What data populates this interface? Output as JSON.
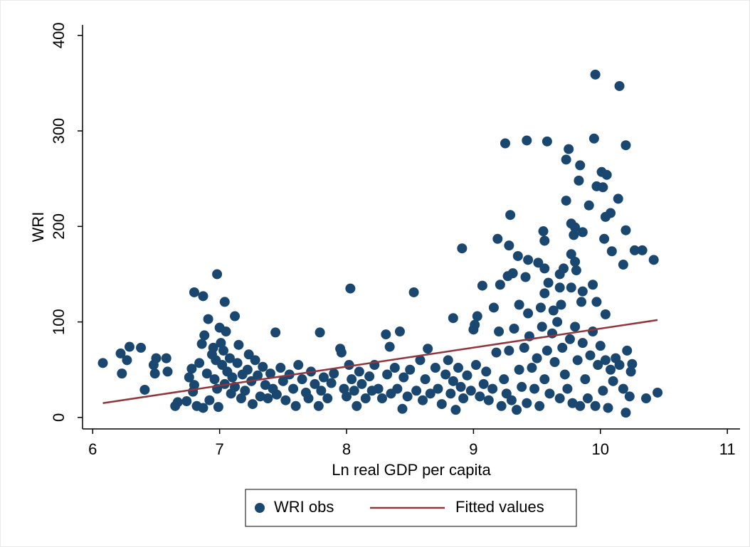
{
  "chart_data": {
    "type": "scatter",
    "xlabel": "Ln real GDP per capita",
    "ylabel": "WRI",
    "xlim": [
      5.92,
      11.1
    ],
    "ylim": [
      -12,
      411
    ],
    "xticks": [
      6,
      7,
      8,
      9,
      10,
      11
    ],
    "yticks": [
      0,
      100,
      200,
      300,
      400
    ],
    "grid": false,
    "legend": "bottom",
    "series": [
      {
        "name": "WRI obs",
        "type": "scatter",
        "color": "#1a476f",
        "x": [
          6.08,
          6.22,
          6.23,
          6.29,
          6.27,
          6.38,
          6.41,
          6.49,
          6.5,
          6.48,
          6.58,
          6.59,
          6.8,
          6.87,
          6.98,
          7.04,
          7.12,
          6.91,
          7.44,
          7.79,
          8.03,
          8.53,
          8.31,
          8.42,
          8.34,
          8.91,
          8.84,
          9.07,
          9.03,
          9.25,
          9.42,
          9.58,
          9.75,
          9.96,
          10.15,
          9.95,
          10.2,
          9.73,
          9.84,
          10.01,
          10.05,
          9.97,
          10.02,
          9.83,
          9.73,
          10.14,
          9.91,
          9.29,
          10.08,
          10.04,
          9.77,
          9.8,
          9.55,
          10.2,
          9.79,
          9.86,
          9.19,
          9.56,
          10.03,
          9.28,
          9.35,
          10.27,
          10.33,
          10.09,
          9.43,
          10.42,
          10.18,
          9.51,
          9.56,
          9.77,
          9.8,
          9.71,
          9.81,
          9.31,
          9.27,
          9.68,
          9.41,
          9.21,
          9.59,
          9.77,
          9.94,
          9.86,
          9.68,
          9.56,
          9.85,
          9.97,
          9.36,
          9.53,
          9.69,
          10.04,
          9.43,
          9.63,
          9.16,
          6.65,
          6.67,
          6.74,
          6.76,
          6.78,
          6.79,
          6.8,
          6.82,
          6.84,
          6.86,
          6.87,
          6.88,
          6.9,
          6.92,
          6.94,
          6.95,
          6.96,
          6.97,
          6.98,
          6.99,
          7.0,
          7.01,
          7.02,
          7.03,
          7.04,
          7.05,
          7.06,
          7.08,
          7.09,
          7.1,
          7.12,
          7.14,
          7.15,
          7.17,
          7.18,
          7.2,
          7.22,
          7.23,
          7.25,
          7.26,
          7.28,
          7.3,
          7.32,
          7.34,
          7.36,
          7.38,
          7.4,
          7.42,
          7.45,
          7.48,
          7.5,
          7.52,
          7.55,
          7.58,
          7.6,
          7.62,
          7.65,
          7.68,
          7.7,
          7.72,
          7.75,
          7.78,
          7.8,
          7.82,
          7.85,
          7.88,
          7.9,
          7.95,
          7.96,
          7.98,
          8.0,
          8.02,
          8.04,
          8.06,
          8.08,
          8.1,
          8.12,
          8.15,
          8.18,
          8.2,
          8.22,
          8.25,
          8.28,
          8.32,
          8.35,
          8.38,
          8.4,
          8.44,
          8.45,
          8.48,
          8.5,
          8.55,
          8.58,
          8.6,
          8.62,
          8.64,
          8.66,
          8.7,
          8.72,
          8.75,
          8.78,
          8.8,
          8.82,
          8.84,
          8.86,
          8.88,
          8.9,
          8.92,
          8.95,
          8.98,
          9.0,
          9.01,
          9.02,
          9.05,
          9.08,
          9.1,
          9.12,
          9.15,
          9.18,
          9.2,
          9.22,
          9.24,
          9.26,
          9.28,
          9.3,
          9.32,
          9.34,
          9.36,
          9.38,
          9.4,
          9.42,
          9.44,
          9.46,
          9.48,
          9.5,
          9.52,
          9.54,
          9.56,
          9.58,
          9.6,
          9.62,
          9.64,
          9.66,
          9.68,
          9.7,
          9.72,
          9.74,
          9.76,
          9.78,
          9.8,
          9.82,
          9.84,
          9.86,
          9.88,
          9.9,
          9.92,
          9.94,
          9.96,
          9.98,
          10.0,
          10.02,
          10.04,
          10.06,
          10.08,
          10.1,
          10.12,
          10.15,
          10.18,
          10.2,
          10.21,
          10.23,
          10.24,
          10.25,
          10.36,
          10.45
        ],
        "values": [
          57,
          67,
          46,
          74,
          60,
          73,
          29,
          46,
          62,
          55,
          62,
          48,
          131,
          127,
          150,
          121,
          106,
          103,
          89,
          89,
          135,
          131,
          87,
          90,
          74,
          177,
          104,
          138,
          106,
          287,
          290,
          289,
          281,
          359,
          347,
          292,
          285,
          270,
          264,
          257,
          254,
          242,
          241,
          248,
          227,
          229,
          222,
          212,
          214,
          210,
          203,
          199,
          195,
          196,
          191,
          194,
          187,
          185,
          187,
          180,
          169,
          175,
          175,
          174,
          165,
          165,
          160,
          162,
          156,
          171,
          163,
          156,
          154,
          151,
          148,
          150,
          147,
          139,
          141,
          136,
          139,
          132,
          136,
          130,
          121,
          121,
          118,
          115,
          118,
          108,
          109,
          112,
          115,
          12,
          16,
          17,
          42,
          51,
          27,
          34,
          12,
          57,
          77,
          10,
          86,
          46,
          18,
          66,
          73,
          40,
          60,
          30,
          11,
          94,
          78,
          55,
          70,
          35,
          90,
          48,
          62,
          25,
          42,
          32,
          57,
          76,
          20,
          45,
          28,
          50,
          66,
          38,
          14,
          60,
          44,
          22,
          53,
          34,
          20,
          46,
          30,
          24,
          52,
          38,
          18,
          45,
          30,
          12,
          55,
          40,
          26,
          20,
          48,
          35,
          12,
          28,
          42,
          20,
          36,
          46,
          72,
          68,
          30,
          22,
          55,
          40,
          28,
          12,
          48,
          35,
          20,
          43,
          28,
          55,
          30,
          20,
          45,
          25,
          52,
          30,
          9,
          42,
          22,
          50,
          28,
          60,
          18,
          40,
          72,
          25,
          52,
          30,
          14,
          45,
          60,
          25,
          38,
          8,
          52,
          32,
          20,
          44,
          28,
          92,
          97,
          55,
          22,
          35,
          48,
          18,
          30,
          68,
          90,
          12,
          40,
          25,
          70,
          18,
          93,
          8,
          50,
          32,
          73,
          15,
          85,
          52,
          30,
          62,
          12,
          95,
          40,
          70,
          25,
          88,
          58,
          100,
          20,
          73,
          45,
          30,
          82,
          15,
          95,
          60,
          12,
          78,
          40,
          20,
          65,
          90,
          12,
          55,
          75,
          28,
          60,
          10,
          50,
          38,
          62,
          55,
          30,
          5,
          70,
          22,
          48,
          56,
          20,
          26
        ]
      },
      {
        "name": "Fitted values",
        "type": "line",
        "color": "#90353b",
        "x": [
          6.08,
          10.45
        ],
        "values": [
          15,
          102
        ]
      }
    ]
  }
}
